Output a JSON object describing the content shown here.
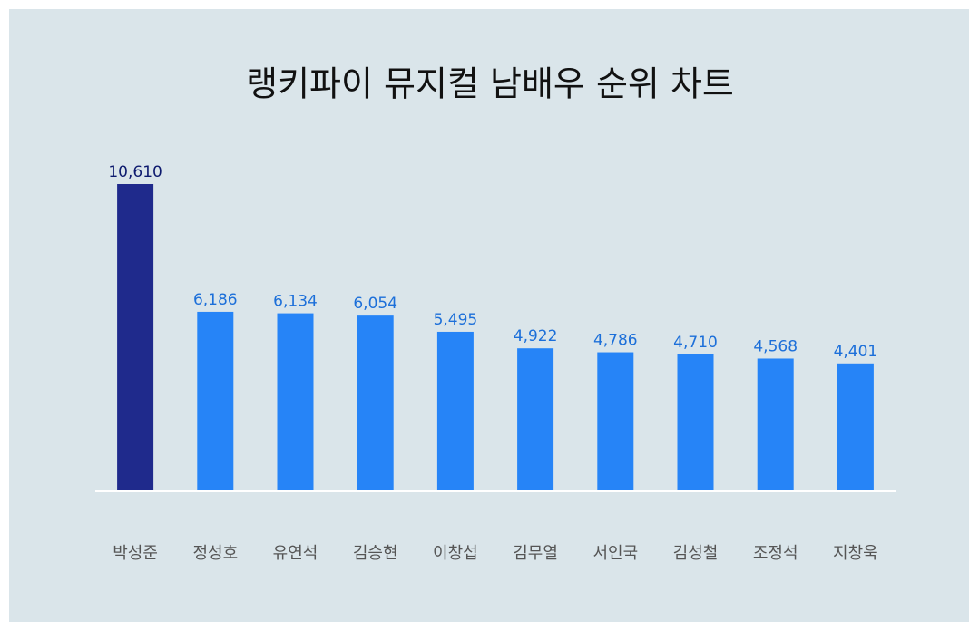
{
  "chart_data": {
    "type": "bar",
    "title": "랭키파이 뮤지컬 남배우 순위 차트",
    "categories": [
      "박성준",
      "정성호",
      "유연석",
      "김승현",
      "이창섭",
      "김무열",
      "서인국",
      "김성철",
      "조정석",
      "지창욱"
    ],
    "values": [
      10610,
      6186,
      6134,
      6054,
      5495,
      4922,
      4786,
      4710,
      4568,
      4401
    ],
    "value_labels": [
      "10,610",
      "6,186",
      "6,134",
      "6,054",
      "5,495",
      "4,922",
      "4,786",
      "4,710",
      "4,568",
      "4,401"
    ],
    "colors": [
      "#1f2a8c",
      "#2684f7",
      "#2684f7",
      "#2684f7",
      "#2684f7",
      "#2684f7",
      "#2684f7",
      "#2684f7",
      "#2684f7",
      "#2684f7"
    ],
    "value_label_colors": [
      "#0d1a6e",
      "#1c6fd9",
      "#1c6fd9",
      "#1c6fd9",
      "#1c6fd9",
      "#1c6fd9",
      "#1c6fd9",
      "#1c6fd9",
      "#1c6fd9",
      "#1c6fd9"
    ]
  }
}
